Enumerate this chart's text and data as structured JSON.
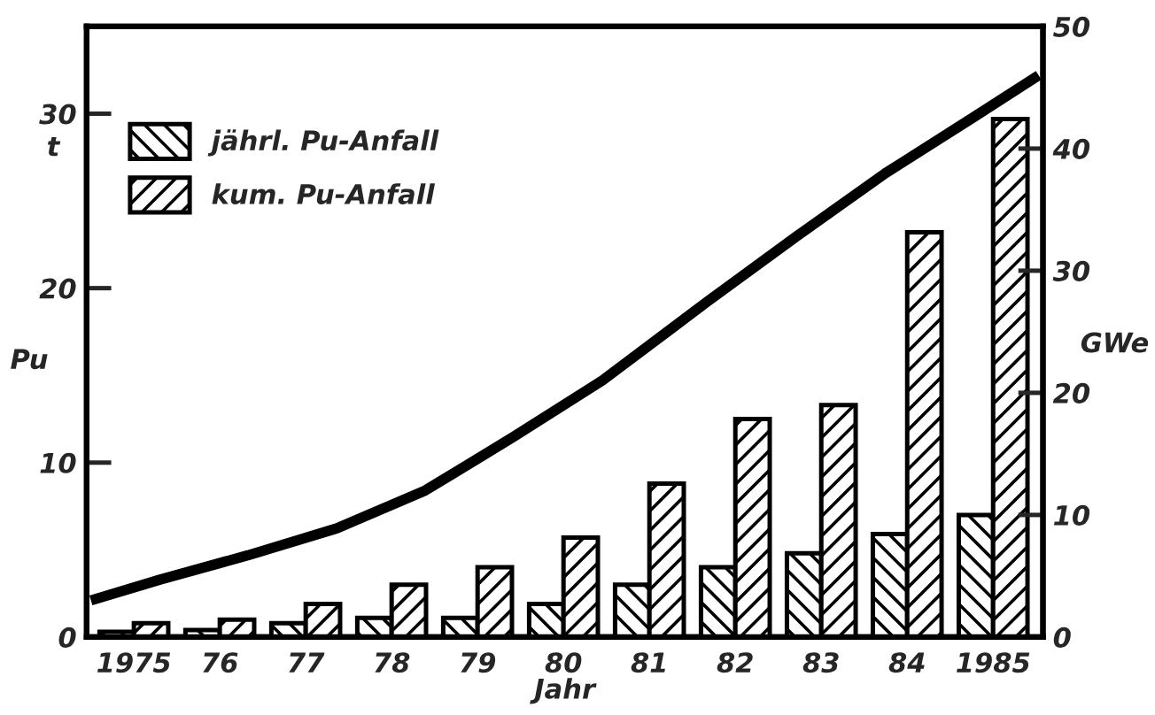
{
  "chart_data": {
    "type": "bar",
    "xlabel": "Jahr",
    "ylabel": "Pu",
    "y2label": "GWe",
    "annotations": [
      "t"
    ],
    "x": [
      1975,
      1976,
      1977,
      1978,
      1979,
      1980,
      1981,
      1982,
      1983,
      1984,
      1985
    ],
    "xlim": [
      1974.45,
      1985.58
    ],
    "xticks": [
      {
        "value": 1975,
        "label": "1975"
      },
      {
        "value": 1976,
        "label": "76"
      },
      {
        "value": 1977,
        "label": "77"
      },
      {
        "value": 1978,
        "label": "78"
      },
      {
        "value": 1979,
        "label": "79"
      },
      {
        "value": 1980,
        "label": "80"
      },
      {
        "value": 1981,
        "label": "81"
      },
      {
        "value": 1982,
        "label": "82"
      },
      {
        "value": 1983,
        "label": "83"
      },
      {
        "value": 1984,
        "label": "84"
      },
      {
        "value": 1985,
        "label": "1985"
      }
    ],
    "ylim": [
      0,
      35
    ],
    "yticks": [
      0,
      10,
      20,
      30
    ],
    "y2lim": [
      0,
      50
    ],
    "y2ticks": [
      0,
      10,
      20,
      30,
      40,
      50
    ],
    "series": [
      {
        "name": "jährl. Pu-Anfall",
        "color": "#000000",
        "values": [
          0.3,
          0.4,
          0.8,
          1.1,
          1.1,
          1.9,
          3.0,
          4.0,
          4.8,
          5.9,
          7.0
        ]
      },
      {
        "name": "kum. Pu-Anfall",
        "color": "#000000",
        "values": [
          0.8,
          1.0,
          1.9,
          3.0,
          4.0,
          5.7,
          8.8,
          12.5,
          13.3,
          23.2,
          29.7
        ]
      },
      {
        "type": "line",
        "axis": "y2",
        "color": "#000000",
        "x": [
          1974.5,
          1975.3,
          1976.33,
          1977.36,
          1978.39,
          1979.42,
          1980.45,
          1981.68,
          1982.71,
          1983.75,
          1984.78,
          1985.53
        ],
        "values": [
          3.0,
          4.7,
          6.7,
          8.9,
          12.0,
          16.4,
          21.0,
          27.5,
          32.8,
          38.0,
          42.6,
          46.0
        ]
      }
    ],
    "legend": "top left"
  }
}
